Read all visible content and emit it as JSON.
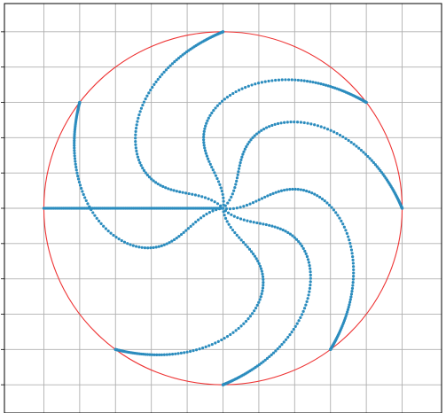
{
  "chart_data": {
    "type": "scatter",
    "title": "",
    "xlabel": "",
    "ylabel": "",
    "xlim": [
      -6.1,
      6.1
    ],
    "ylim": [
      -5.8,
      5.8
    ],
    "grid": true,
    "xticks": [
      -5,
      -4,
      -3,
      -2,
      -1,
      0,
      1,
      2,
      3,
      4,
      5
    ],
    "yticks": [
      -5,
      -4,
      -3,
      -2,
      -1,
      0,
      1,
      2,
      3,
      4,
      5
    ],
    "show_tick_labels": false,
    "circle": {
      "center": [
        0,
        0
      ],
      "radius": 5,
      "color": "#ee3333"
    },
    "point_color": "#2b8cbe",
    "spiral_turn_radians": 2.5,
    "points_per_arm": 110,
    "arms": [
      {
        "endpoint": [
          0,
          5
        ]
      },
      {
        "endpoint": [
          4,
          3
        ]
      },
      {
        "endpoint": [
          5,
          0
        ]
      },
      {
        "endpoint": [
          3,
          -4
        ]
      },
      {
        "endpoint": [
          0,
          -5
        ]
      },
      {
        "endpoint": [
          -3,
          -4
        ]
      },
      {
        "endpoint": [
          -5,
          0
        ]
      },
      {
        "endpoint": [
          -4,
          3
        ]
      }
    ]
  }
}
